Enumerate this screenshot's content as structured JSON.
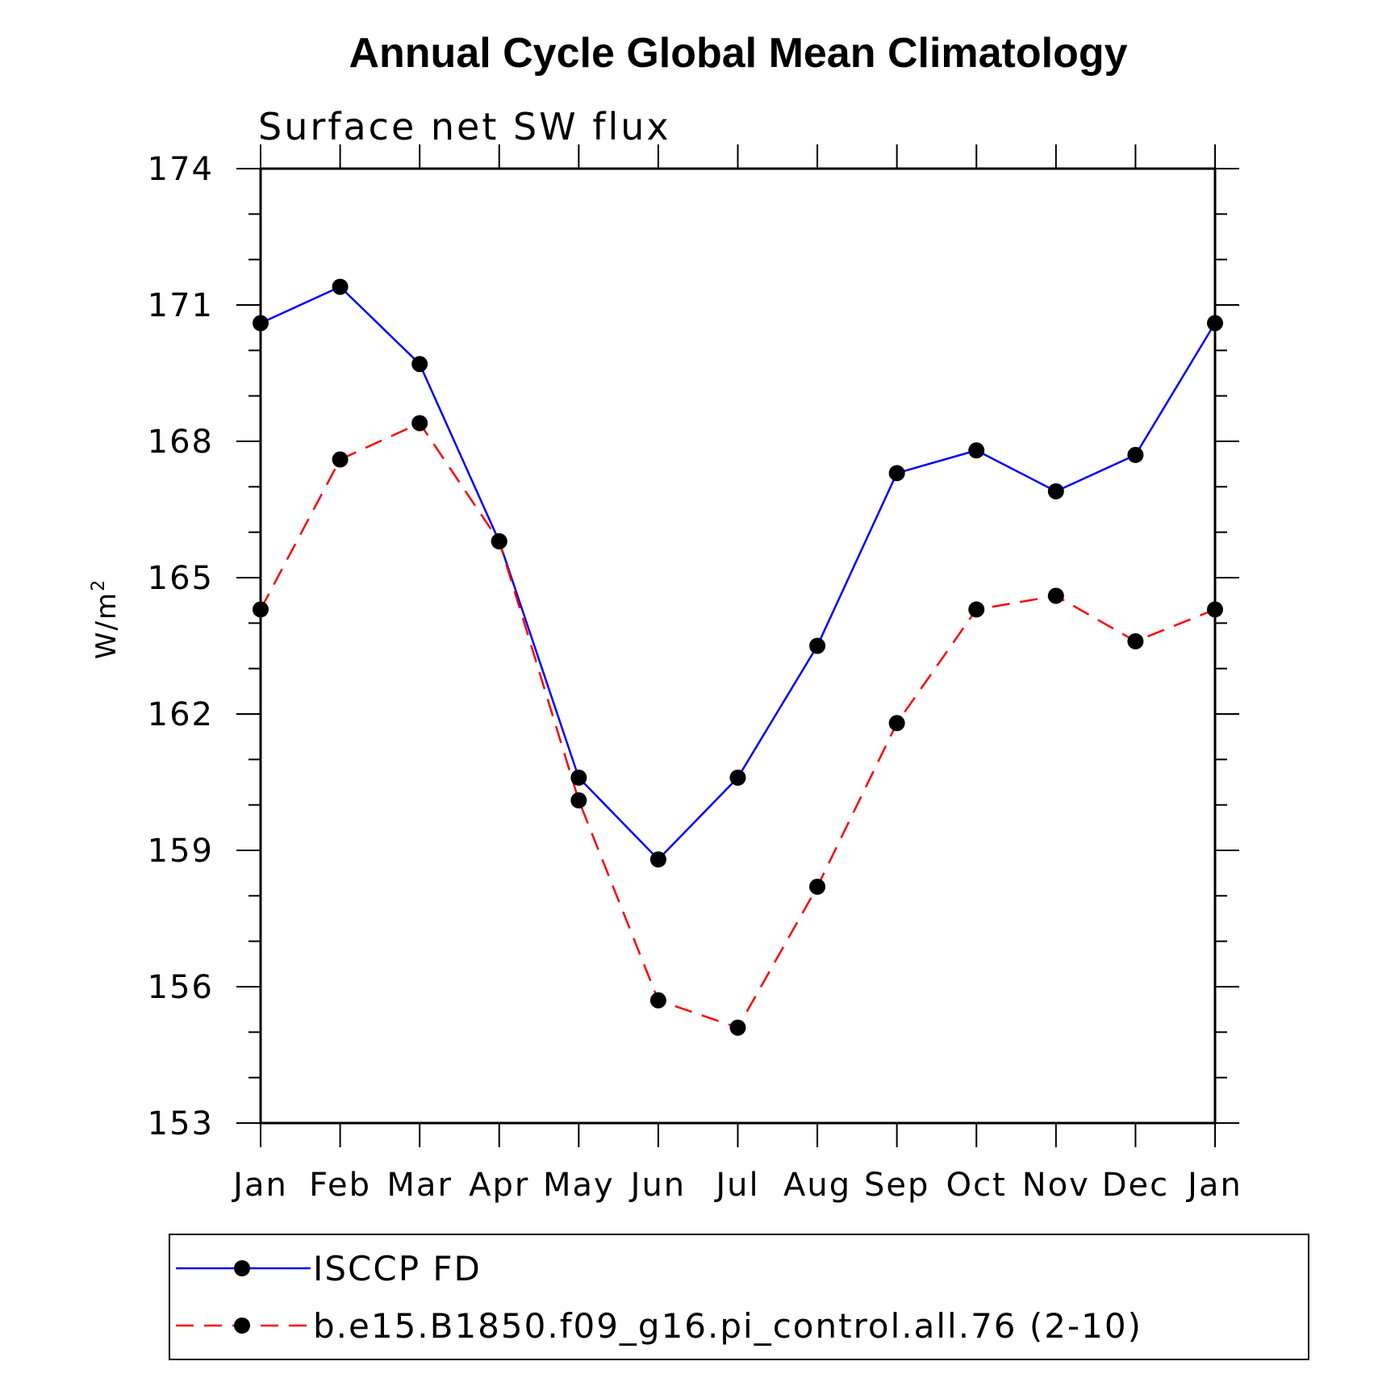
{
  "chart_data": {
    "type": "line",
    "title": "Annual Cycle Global Mean Climatology",
    "subtitle": "Surface net SW flux",
    "ylabel": "W/m",
    "ylabel_superscript": "2",
    "ylim": [
      153,
      174
    ],
    "yticks": [
      153,
      156,
      159,
      162,
      165,
      168,
      171,
      174
    ],
    "ytick_labels": [
      "153",
      "156",
      "159",
      "162",
      "165",
      "168",
      "171",
      "174"
    ],
    "ytick_minor_step": 1,
    "categories": [
      "Jan",
      "Feb",
      "Mar",
      "Apr",
      "May",
      "Jun",
      "Jul",
      "Aug",
      "Sep",
      "Oct",
      "Nov",
      "Dec",
      "Jan"
    ],
    "grid": false,
    "legend_placement": "bottom",
    "series": [
      {
        "name": "ISCCP FD",
        "color": "#0000ff",
        "dash": "solid",
        "marker": "filled-circle",
        "values": [
          170.6,
          171.4,
          169.7,
          165.8,
          160.6,
          158.8,
          160.6,
          163.5,
          167.3,
          167.8,
          166.9,
          167.7,
          170.6
        ]
      },
      {
        "name": "b.e15.B1850.f09_g16.pi_control.all.76 (2-10)",
        "color": "#ff0000",
        "dash": "dashed",
        "marker": "filled-circle",
        "values": [
          164.3,
          167.6,
          168.4,
          165.8,
          160.1,
          155.7,
          155.1,
          158.2,
          161.8,
          164.3,
          164.6,
          163.6,
          164.3
        ]
      }
    ]
  }
}
